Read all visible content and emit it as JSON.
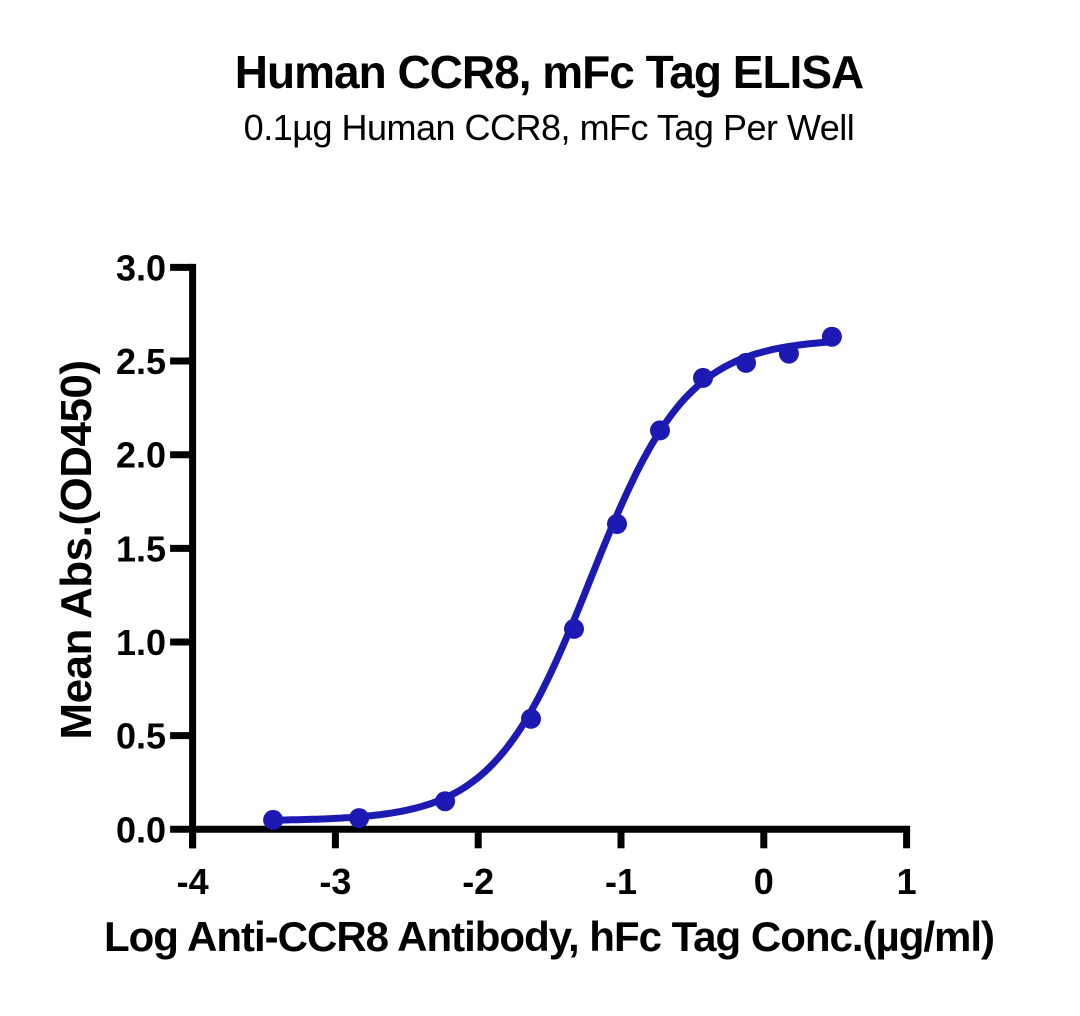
{
  "figure": {
    "background": "#ffffff",
    "text_color": "#000000"
  },
  "chart_data": {
    "type": "scatter",
    "title": "Human CCR8, mFc Tag ELISA",
    "subtitle": "0.1µg Human CCR8, mFc Tag Per Well",
    "xlabel": "Log Anti-CCR8 Antibody, hFc Tag Conc.(µg/ml)",
    "ylabel": "Mean Abs.(OD450)",
    "xlim": [
      -4,
      1
    ],
    "ylim": [
      0,
      3
    ],
    "grid": false,
    "legend": "none",
    "axis_color": "#000000",
    "x_ticks": [
      {
        "v": -4,
        "label": "-4"
      },
      {
        "v": -3,
        "label": "-3"
      },
      {
        "v": -2,
        "label": "-2"
      },
      {
        "v": -1,
        "label": "-1"
      },
      {
        "v": 0,
        "label": "0"
      },
      {
        "v": 1,
        "label": "1"
      }
    ],
    "y_ticks": [
      {
        "v": 0,
        "label": "0.0"
      },
      {
        "v": 0.5,
        "label": "0.5"
      },
      {
        "v": 1,
        "label": "1.0"
      },
      {
        "v": 1.5,
        "label": "1.5"
      },
      {
        "v": 2,
        "label": "2.0"
      },
      {
        "v": 2.5,
        "label": "2.5"
      },
      {
        "v": 3,
        "label": "3.0"
      }
    ],
    "series": [
      {
        "name": "Anti-CCR8 Antibody, hFc Tag",
        "color": "#1c1ab2",
        "marker": "circle",
        "points": [
          {
            "x": -3.436,
            "y": 0.05
          },
          {
            "x": -2.834,
            "y": 0.06
          },
          {
            "x": -2.232,
            "y": 0.15
          },
          {
            "x": -1.63,
            "y": 0.59
          },
          {
            "x": -1.329,
            "y": 1.07
          },
          {
            "x": -1.028,
            "y": 1.63
          },
          {
            "x": -0.727,
            "y": 2.13
          },
          {
            "x": -0.426,
            "y": 2.41
          },
          {
            "x": -0.125,
            "y": 2.49
          },
          {
            "x": 0.176,
            "y": 2.54
          },
          {
            "x": 0.477,
            "y": 2.63
          }
        ],
        "fit_curve": {
          "model": "4PL",
          "bottom": 0.045,
          "top": 2.62,
          "logEC50": -1.215,
          "hillslope": 1.28
        }
      }
    ]
  }
}
